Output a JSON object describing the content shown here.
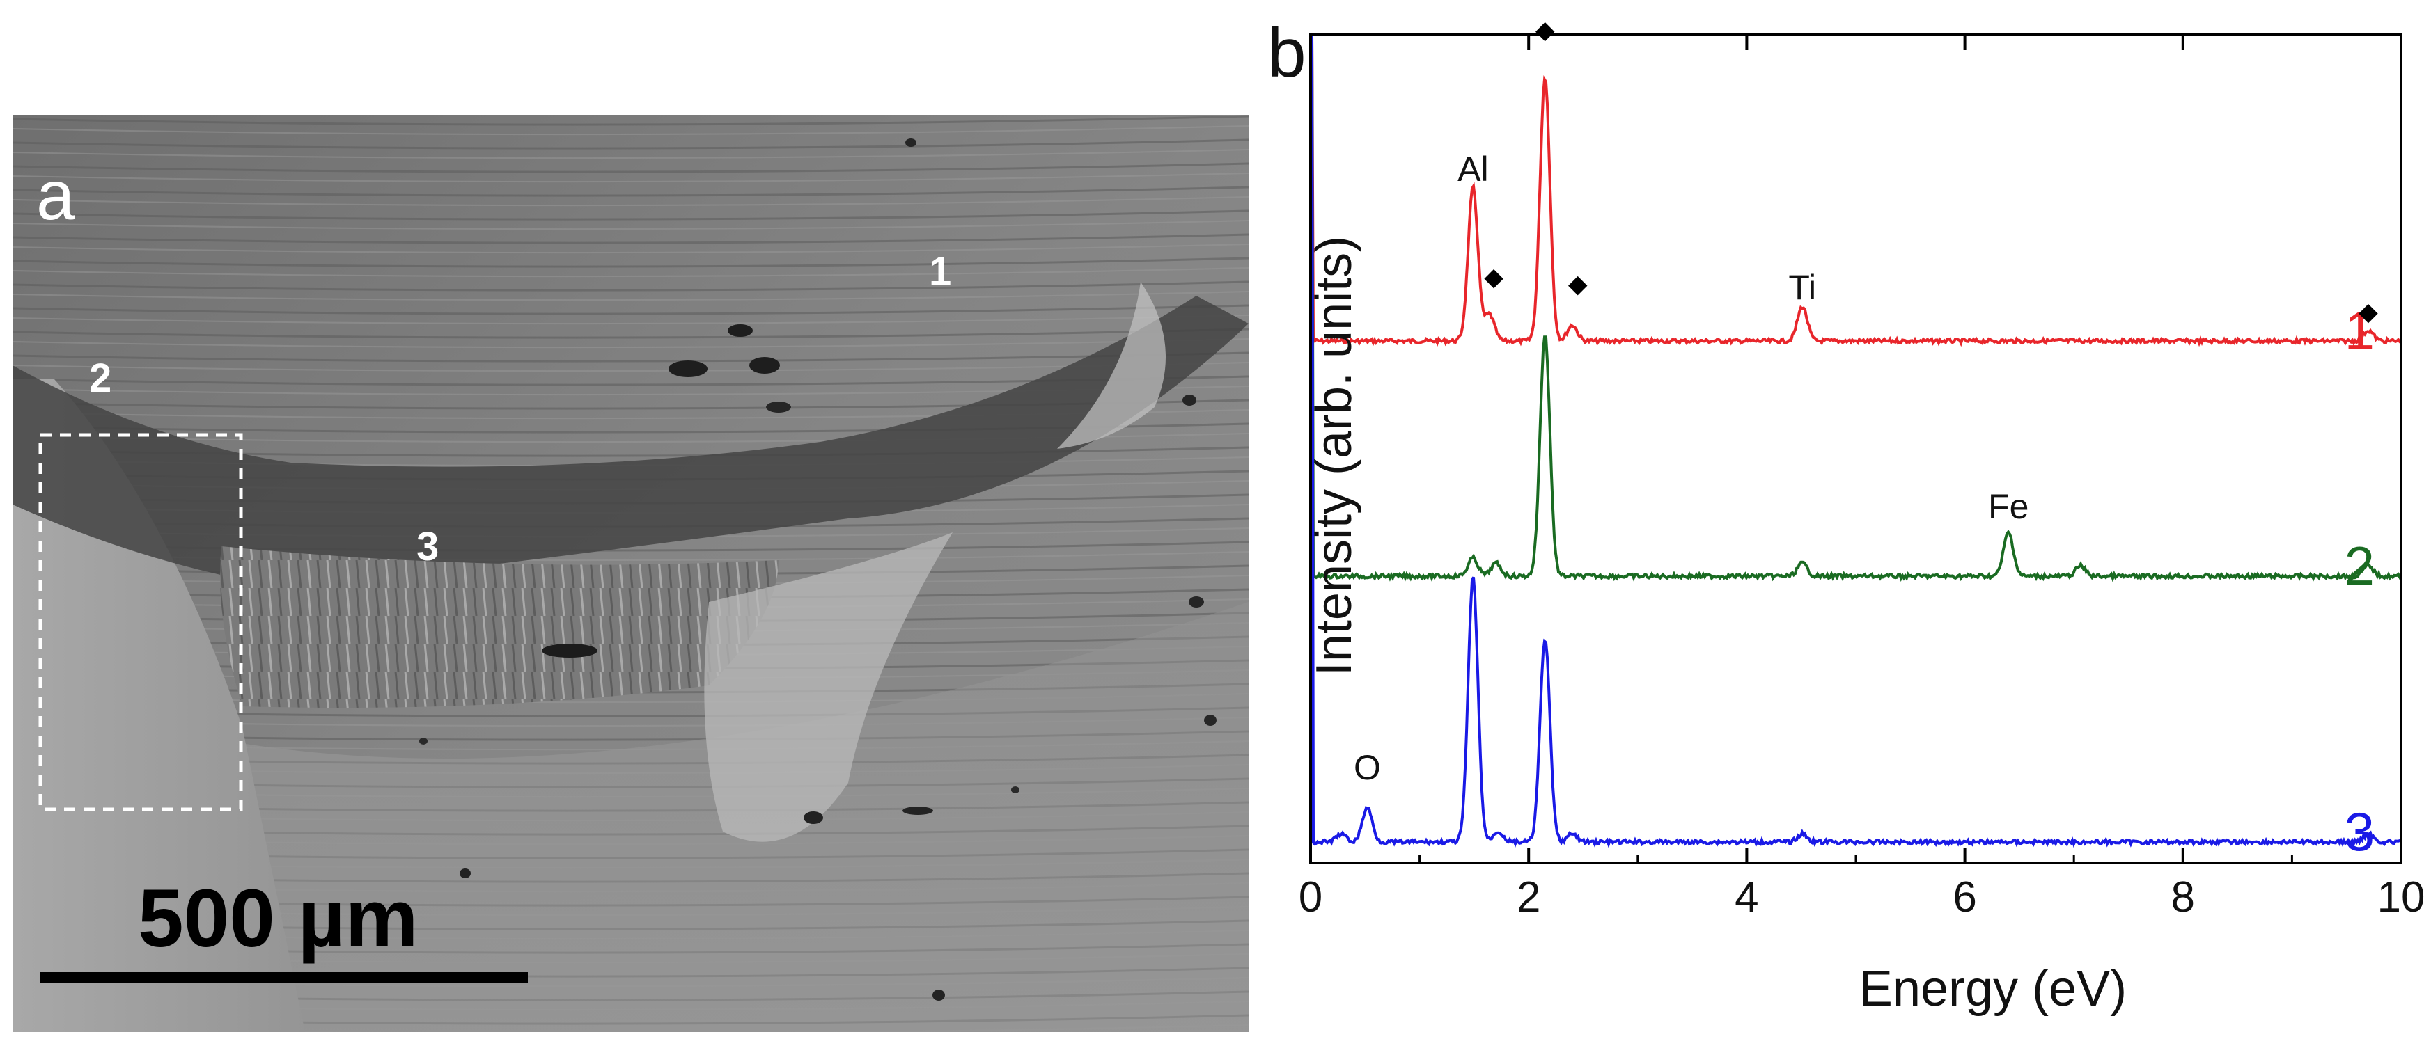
{
  "panel_a": {
    "label": "a",
    "region_labels": [
      "1",
      "2",
      "3"
    ],
    "scale_bar": {
      "label": "500 µm",
      "length_um": 500
    }
  },
  "panel_b": {
    "label": "b",
    "chart_data": {
      "type": "line",
      "xlabel": "Energy (eV)",
      "ylabel": "Intensity (arb. units)",
      "xlim": [
        0,
        10
      ],
      "xticks": [
        "0",
        "2",
        "4",
        "6",
        "8",
        "10"
      ],
      "grid": false,
      "series": [
        {
          "name": "1",
          "color": "#e8262b",
          "peaks": [
            {
              "x": 1.49,
              "h": 0.58
            },
            {
              "x": 1.64,
              "h": 0.1
            },
            {
              "x": 2.15,
              "h": 1.0
            },
            {
              "x": 2.4,
              "h": 0.06
            },
            {
              "x": 4.51,
              "h": 0.13
            },
            {
              "x": 9.7,
              "h": 0.04
            }
          ]
        },
        {
          "name": "2",
          "color": "#1a6b22",
          "peaks": [
            {
              "x": 1.49,
              "h": 0.07
            },
            {
              "x": 1.7,
              "h": 0.05
            },
            {
              "x": 2.15,
              "h": 0.94
            },
            {
              "x": 4.51,
              "h": 0.05
            },
            {
              "x": 6.4,
              "h": 0.17
            },
            {
              "x": 7.06,
              "h": 0.04
            },
            {
              "x": 9.7,
              "h": 0.04
            }
          ]
        },
        {
          "name": "3",
          "color": "#1a1ae6",
          "peaks": [
            {
              "x": 0.28,
              "h": 0.03
            },
            {
              "x": 0.52,
              "h": 0.13
            },
            {
              "x": 1.49,
              "h": 1.0
            },
            {
              "x": 1.72,
              "h": 0.04
            },
            {
              "x": 2.15,
              "h": 0.77
            },
            {
              "x": 2.4,
              "h": 0.03
            },
            {
              "x": 4.51,
              "h": 0.03
            },
            {
              "x": 9.7,
              "h": 0.03
            }
          ]
        }
      ],
      "annotations": [
        {
          "text": "Al",
          "x": 1.49
        },
        {
          "text": "Ti",
          "x": 4.51
        },
        {
          "text": "Fe",
          "x": 6.4
        },
        {
          "text": "O",
          "x": 0.52
        }
      ],
      "markers": [
        {
          "symbol": "◆",
          "x": 2.15
        },
        {
          "symbol": "◆",
          "x": 1.68
        },
        {
          "symbol": "◆",
          "x": 2.45
        },
        {
          "symbol": "◆",
          "x": 9.7
        }
      ]
    }
  }
}
